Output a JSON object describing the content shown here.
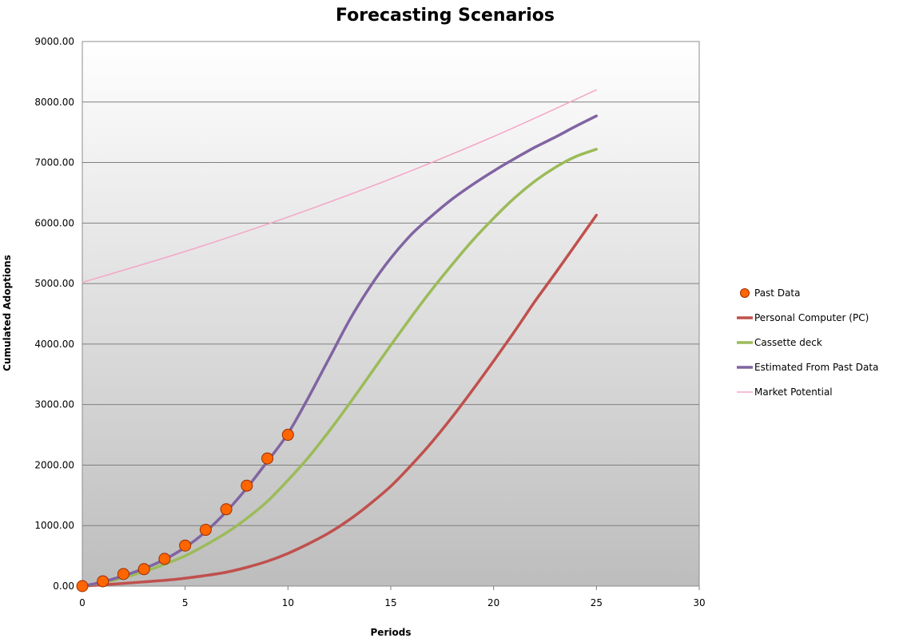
{
  "chart_data": {
    "type": "line",
    "title": "Forecasting Scenarios",
    "xlabel": "Periods",
    "ylabel": "Cumulated Adoptions",
    "xlim": [
      0,
      30
    ],
    "ylim": [
      0,
      9000
    ],
    "x_ticks": [
      "0",
      "5",
      "10",
      "15",
      "20",
      "25",
      "30"
    ],
    "y_ticks": [
      "0.00",
      "1000.00",
      "2000.00",
      "3000.00",
      "4000.00",
      "5000.00",
      "6000.00",
      "7000.00",
      "8000.00",
      "9000.00"
    ],
    "grid": true,
    "legend_position": "right",
    "series": [
      {
        "name": "Past Data",
        "kind": "scatter",
        "color": "#ff6600",
        "x": [
          0,
          1,
          2,
          3,
          4,
          5,
          6,
          7,
          8,
          9,
          10
        ],
        "y": [
          0,
          80,
          200,
          280,
          450,
          670,
          930,
          1270,
          1660,
          2110,
          2500
        ]
      },
      {
        "name": "Personal Computer (PC)",
        "kind": "line",
        "color": "#c0504d",
        "x": [
          0,
          1,
          2,
          3,
          4,
          5,
          6,
          7,
          8,
          9,
          10,
          11,
          12,
          13,
          14,
          15,
          16,
          17,
          18,
          19,
          20,
          21,
          22,
          23,
          24,
          25
        ],
        "y": [
          0,
          20,
          45,
          70,
          95,
          130,
          175,
          230,
          310,
          410,
          540,
          700,
          880,
          1100,
          1360,
          1650,
          2000,
          2380,
          2800,
          3250,
          3720,
          4200,
          4700,
          5170,
          5650,
          6130
        ]
      },
      {
        "name": "Cassette deck",
        "kind": "line",
        "color": "#9bbb59",
        "x": [
          0,
          1,
          2,
          3,
          4,
          5,
          6,
          7,
          8,
          9,
          10,
          11,
          12,
          13,
          14,
          15,
          16,
          17,
          18,
          19,
          20,
          21,
          22,
          23,
          24,
          25
        ],
        "y": [
          0,
          60,
          140,
          240,
          360,
          500,
          680,
          880,
          1120,
          1400,
          1750,
          2130,
          2560,
          3020,
          3500,
          3980,
          4450,
          4900,
          5320,
          5720,
          6080,
          6410,
          6690,
          6920,
          7100,
          7220
        ]
      },
      {
        "name": "Estimated From Past Data",
        "kind": "line",
        "color": "#8064a2",
        "x": [
          0,
          1,
          2,
          3,
          4,
          5,
          6,
          7,
          8,
          9,
          10,
          11,
          12,
          13,
          14,
          15,
          16,
          17,
          18,
          19,
          20,
          21,
          22,
          23,
          24,
          25
        ],
        "y": [
          0,
          70,
          170,
          290,
          440,
          640,
          900,
          1230,
          1620,
          2060,
          2520,
          3120,
          3760,
          4400,
          4950,
          5420,
          5810,
          6120,
          6400,
          6640,
          6860,
          7060,
          7250,
          7420,
          7600,
          7770
        ]
      },
      {
        "name": "Market Potential",
        "kind": "line",
        "color": "#f4a6c8",
        "x": [
          0,
          5,
          10,
          15,
          20,
          25
        ],
        "y": [
          5020,
          5530,
          6100,
          6730,
          7430,
          8200
        ]
      }
    ]
  }
}
